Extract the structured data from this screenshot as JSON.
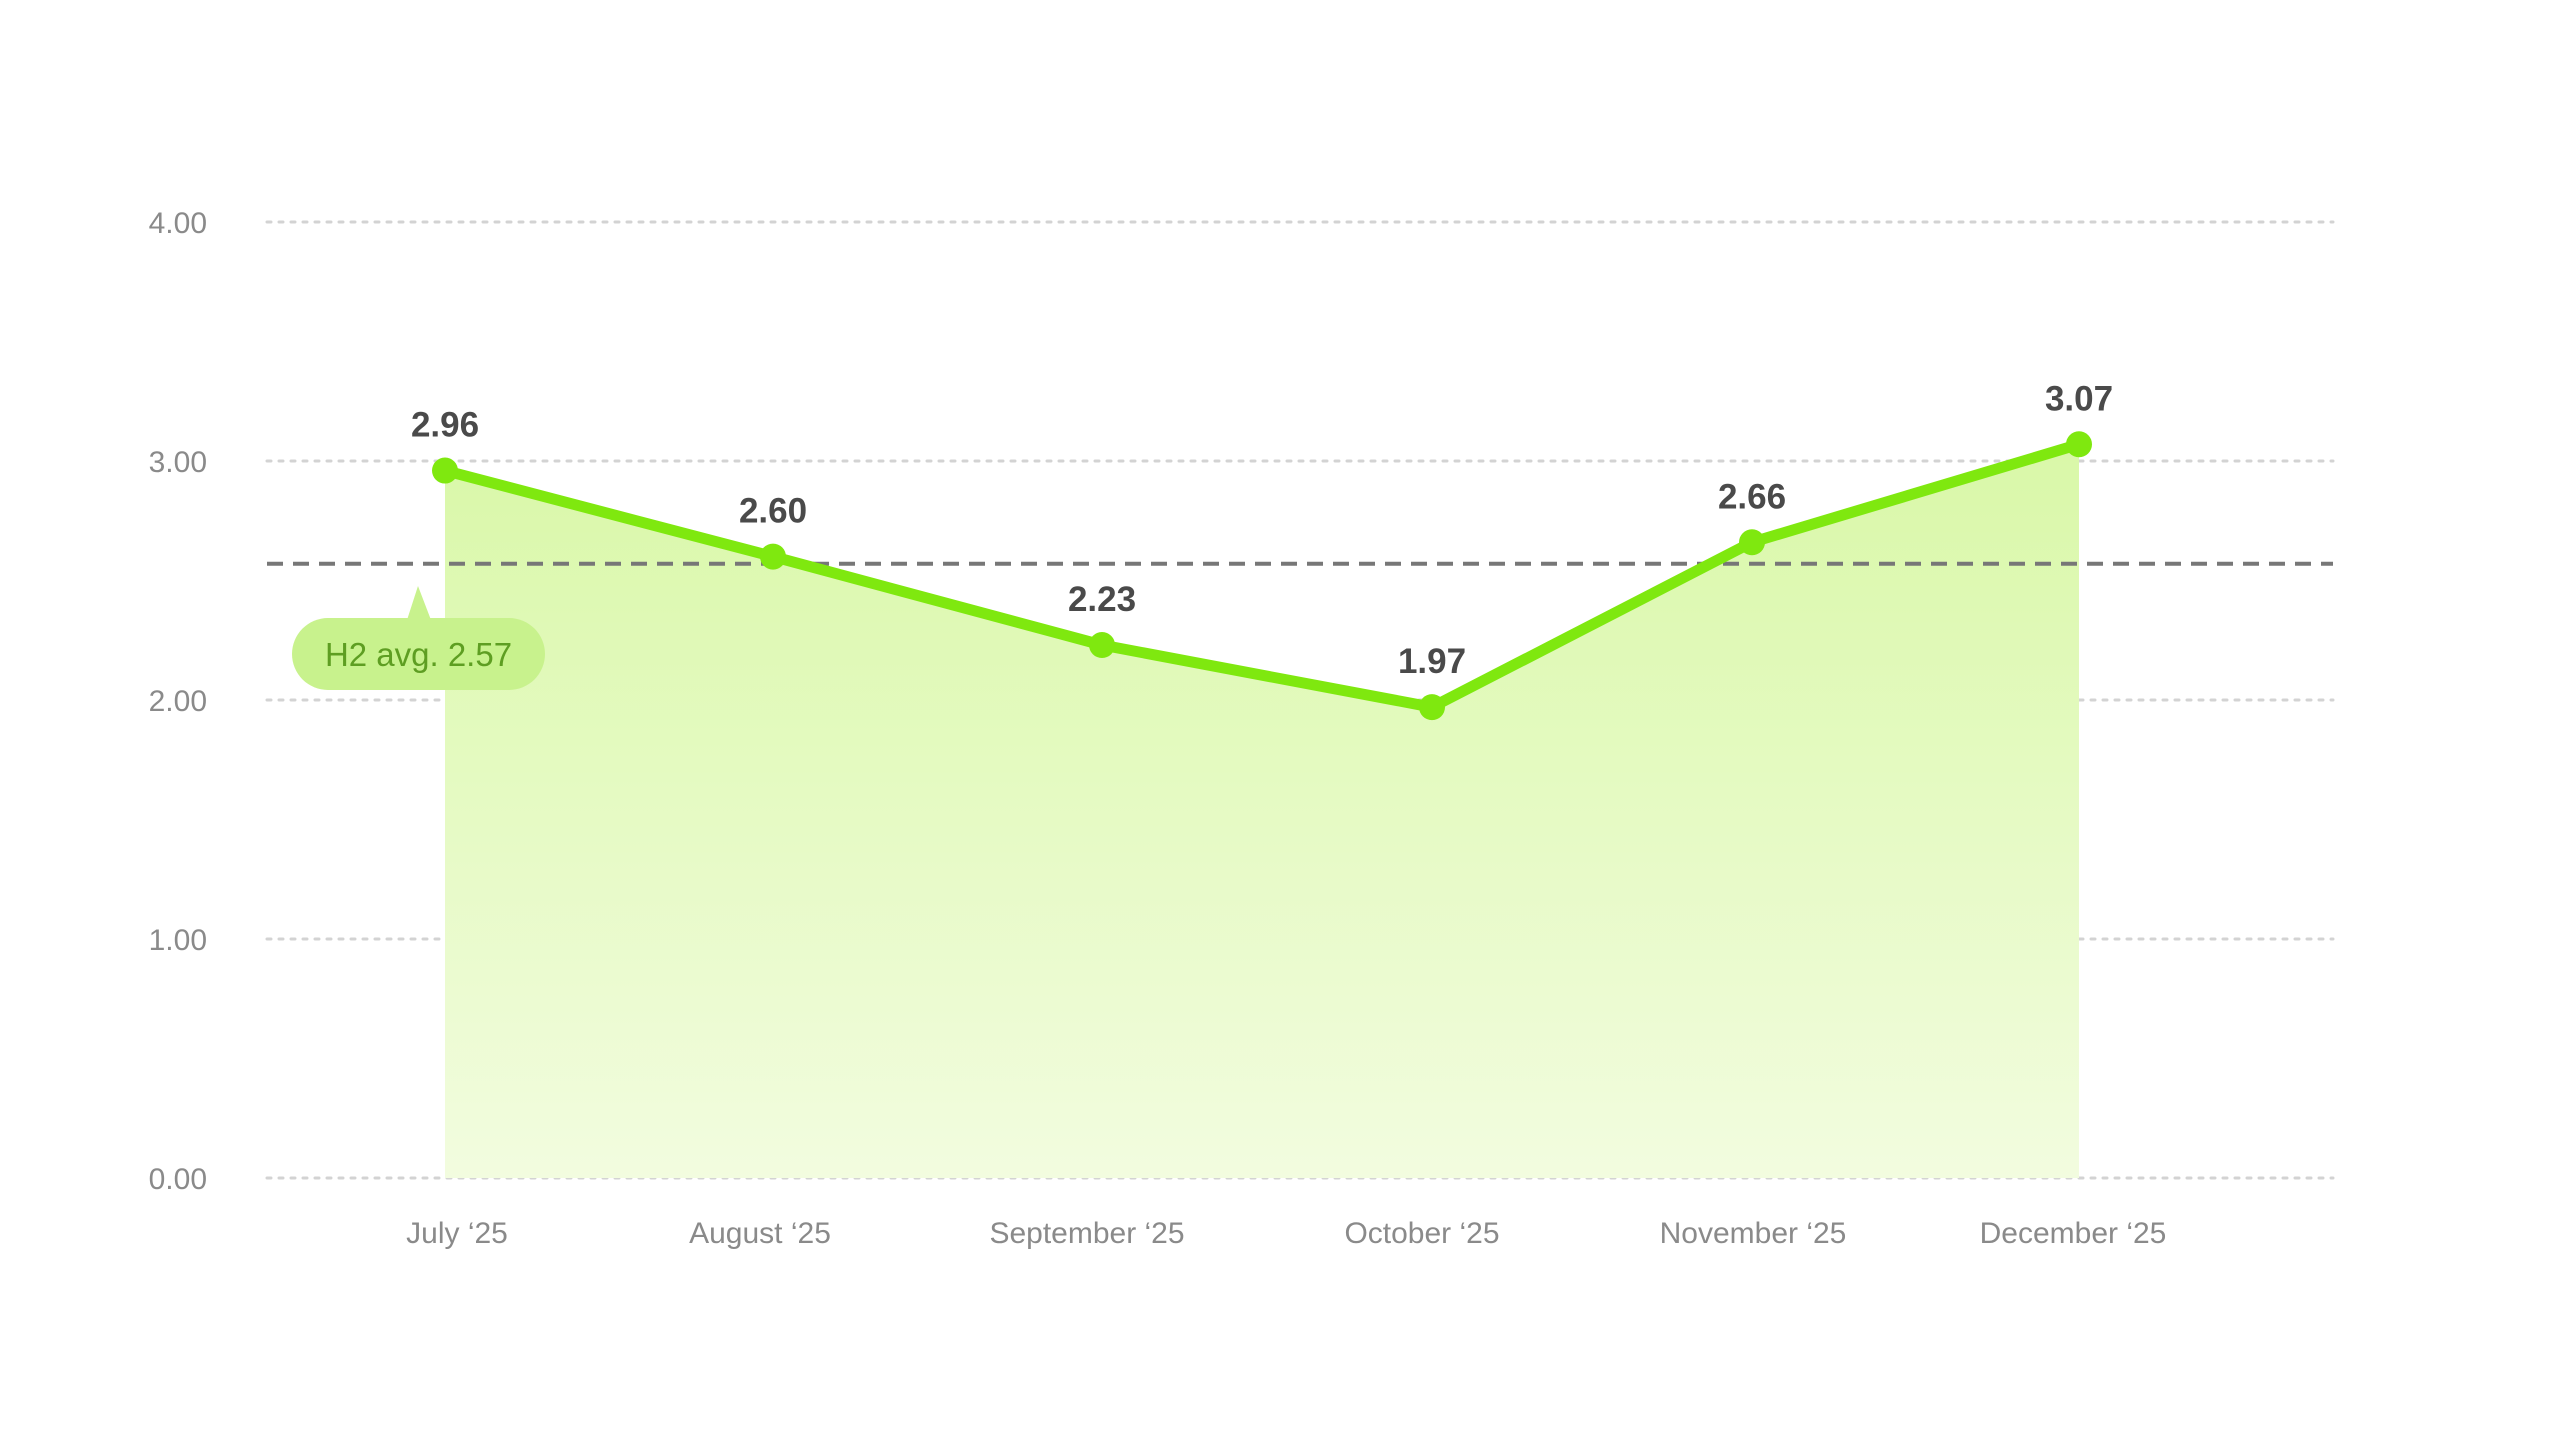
{
  "chart_data": {
    "type": "area",
    "categories": [
      "July ‘25",
      "August ‘25",
      "September ‘25",
      "October ‘25",
      "November ‘25",
      "December ‘25"
    ],
    "values": [
      2.96,
      2.6,
      2.23,
      1.97,
      2.66,
      3.07
    ],
    "value_labels": [
      "2.96",
      "2.60",
      "2.23",
      "1.97",
      "2.66",
      "3.07"
    ],
    "ylim": [
      0,
      4
    ],
    "yticks": [
      0,
      1,
      2,
      3,
      4
    ],
    "ytick_labels": [
      "0.00",
      "1.00",
      "2.00",
      "3.00",
      "4.00"
    ],
    "grid": true,
    "reference_line": {
      "value": 2.57,
      "label": "H2 avg. 2.57",
      "style": "dashed"
    },
    "colors": {
      "line": "#7FE80F",
      "area_top": "#D9F8A8",
      "area_bottom": "#F2FCDF",
      "reference_line": "#777777",
      "badge_fill": "#C8F28D",
      "badge_text": "#5E9E22",
      "value_label": "#4A4A4A",
      "tick_label": "#8A8A8A",
      "grid": "#D3D3D3"
    }
  }
}
